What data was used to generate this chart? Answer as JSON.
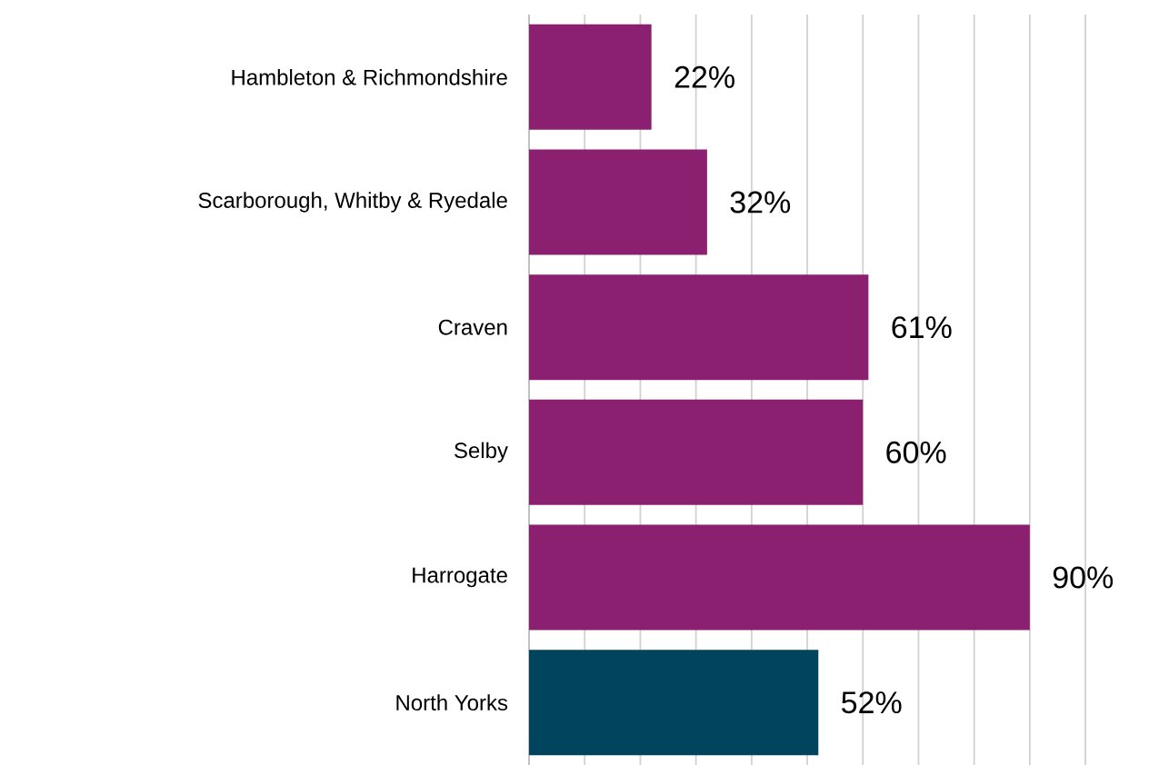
{
  "chart_data": {
    "type": "bar",
    "orientation": "horizontal",
    "categories": [
      "Hambleton & Richmondshire",
      "Scarborough, Whitby & Ryedale",
      "Craven",
      "Selby",
      "Harrogate",
      "North Yorks"
    ],
    "values": [
      22,
      32,
      61,
      60,
      90,
      52
    ],
    "value_labels": [
      "22%",
      "32%",
      "61%",
      "60%",
      "90%",
      "52%"
    ],
    "colors": [
      "#8b2070",
      "#8b2070",
      "#8b2070",
      "#8b2070",
      "#8b2070",
      "#00445e"
    ],
    "tick_labels": "y",
    "grid": "x"
  }
}
